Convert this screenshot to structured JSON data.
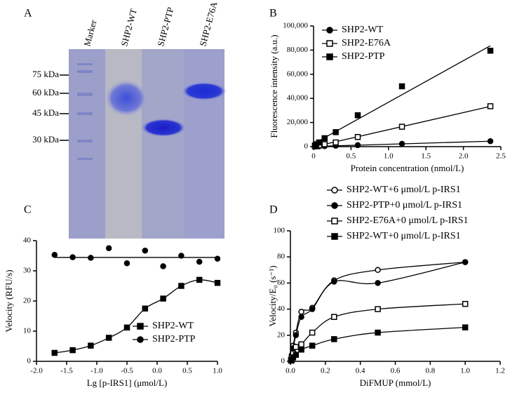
{
  "gel": {
    "panel": "A",
    "lanes": [
      "Marker",
      "SHP2-WT",
      "SHP2-PTP",
      "SHP2-E76A"
    ],
    "markers": [
      "75 kDa",
      "60 kDa",
      "45 kDa",
      "30 kDa"
    ]
  },
  "chart_data": [
    {
      "type": "scatter",
      "panel": "B",
      "xlabel": "Protein concentration (nmol/L)",
      "ylabel": "Fluorescence intensity (a.u.)",
      "xlim": [
        0,
        2.5
      ],
      "xticks": [
        0,
        0.5,
        {
          "value": 1,
          "label": "1.0"
        },
        1.5,
        {
          "value": 2,
          "label": "2.0"
        },
        2.5
      ],
      "ylim": [
        0,
        100000
      ],
      "yticks": [
        0,
        {
          "value": 20000,
          "label": "20,000"
        },
        {
          "value": 40000,
          "label": "40,000"
        },
        {
          "value": 60000,
          "label": "60,000"
        },
        {
          "value": 80000,
          "label": "80,000"
        },
        {
          "value": 100000,
          "label": "100,000"
        }
      ],
      "legend": "upper left",
      "series": [
        {
          "name": "SHP2-WT",
          "color": "#000000",
          "marker": "circle",
          "filled": true,
          "fit": "linear",
          "x": [
            0.0185,
            0.037,
            0.074,
            0.148,
            0.296,
            0.59,
            1.18,
            2.36
          ],
          "values": [
            100,
            150,
            250,
            400,
            700,
            1200,
            2300,
            4500
          ]
        },
        {
          "name": "SHP2-E76A",
          "color": "#000000",
          "marker": "square",
          "filled": false,
          "fit": "linear",
          "x": [
            0.0185,
            0.037,
            0.074,
            0.148,
            0.296,
            0.59,
            1.18,
            2.36
          ],
          "values": [
            400,
            600,
            1000,
            2000,
            3500,
            8000,
            16500,
            33500
          ]
        },
        {
          "name": "SHP2-PTP",
          "color": "#000000",
          "marker": "square",
          "filled": true,
          "fit": "linear",
          "x": [
            0.0185,
            0.037,
            0.074,
            0.148,
            0.296,
            0.59,
            1.18,
            2.36
          ],
          "values": [
            1000,
            2000,
            3500,
            7000,
            12000,
            26000,
            50000,
            79500
          ]
        }
      ]
    },
    {
      "type": "scatter",
      "panel": "C",
      "xlabel": "Lg [p-IRS1] (μmol/L)",
      "ylabel": "Velocity (RFU/s)",
      "xlim": [
        -2,
        1
      ],
      "xticks": [
        {
          "value": -2,
          "label": "-2.0"
        },
        -1.5,
        {
          "value": -1,
          "label": "-1.0"
        },
        -0.5,
        {
          "value": 0,
          "label": "0.0"
        },
        0.5,
        {
          "value": 1,
          "label": "1.0"
        }
      ],
      "ylim": [
        0,
        40
      ],
      "yticks": [
        0,
        10,
        20,
        30,
        40
      ],
      "legend": "lower right",
      "series": [
        {
          "name": "SHP2-WT",
          "color": "#000000",
          "marker": "square",
          "filled": true,
          "fit": "smooth",
          "x": [
            -1.7,
            -1.4,
            -1.1,
            -0.8,
            -0.5,
            -0.2,
            0.1,
            0.4,
            0.7,
            1.0
          ],
          "values": [
            2.8,
            3.7,
            5.2,
            7.8,
            11.2,
            17.5,
            20.8,
            25,
            27,
            26
          ]
        },
        {
          "name": "SHP2-PTP",
          "color": "#000000",
          "marker": "circle",
          "filled": true,
          "fit": "mean",
          "x": [
            -1.7,
            -1.4,
            -1.1,
            -0.8,
            -0.5,
            -0.2,
            0.1,
            0.4,
            0.7,
            1.0
          ],
          "values": [
            35.3,
            34.5,
            34.3,
            37.5,
            32.5,
            36.7,
            31.5,
            35,
            33,
            34
          ]
        }
      ]
    },
    {
      "type": "scatter",
      "panel": "D",
      "xlabel": "DiFMUP (mmol/L)",
      "ylabel": "Velocity/E₀ (s⁻¹)",
      "xlim": [
        0,
        1.2
      ],
      "xticks": [
        {
          "value": 0,
          "label": "0.0"
        },
        0.2,
        0.4,
        0.6,
        0.8,
        {
          "value": 1,
          "label": "1.0"
        },
        1.2
      ],
      "ylim": [
        0,
        100
      ],
      "yticks": [
        0,
        20,
        40,
        60,
        80,
        100
      ],
      "legend": "above",
      "series": [
        {
          "name": "SHP2-WT+6 μmol/L p-IRS1",
          "color": "#000000",
          "marker": "circle",
          "filled": false,
          "fit": "smooth",
          "x": [
            0.0039,
            0.0078,
            0.0156,
            0.03125,
            0.0625,
            0.125,
            0.25,
            0.5,
            1.0
          ],
          "values": [
            1,
            5,
            12,
            22,
            38,
            41,
            62,
            70,
            76
          ]
        },
        {
          "name": "SHP2-PTP+0 μmol/L p-IRS1",
          "color": "#000000",
          "marker": "circle",
          "filled": true,
          "fit": "smooth",
          "x": [
            0.0039,
            0.0078,
            0.0156,
            0.03125,
            0.0625,
            0.125,
            0.25,
            0.5,
            1.0
          ],
          "values": [
            1,
            4,
            10,
            20,
            34,
            40,
            61,
            60,
            76
          ]
        },
        {
          "name": "SHP2-E76A+0 μmol/L p-IRS1",
          "color": "#000000",
          "marker": "square",
          "filled": false,
          "fit": "smooth",
          "x": [
            0.0039,
            0.0078,
            0.0156,
            0.03125,
            0.0625,
            0.125,
            0.25,
            0.5,
            1.0
          ],
          "values": [
            1,
            3,
            6,
            11,
            13,
            22,
            34,
            40,
            44
          ]
        },
        {
          "name": "SHP2-WT+0 μmol/L p-IRS1",
          "color": "#000000",
          "marker": "square",
          "filled": true,
          "fit": "smooth",
          "x": [
            0.0039,
            0.0078,
            0.0156,
            0.03125,
            0.0625,
            0.125,
            0.25,
            0.5,
            1.0
          ],
          "values": [
            0.5,
            1,
            3,
            5,
            9,
            12,
            17,
            22,
            26
          ]
        }
      ]
    }
  ]
}
